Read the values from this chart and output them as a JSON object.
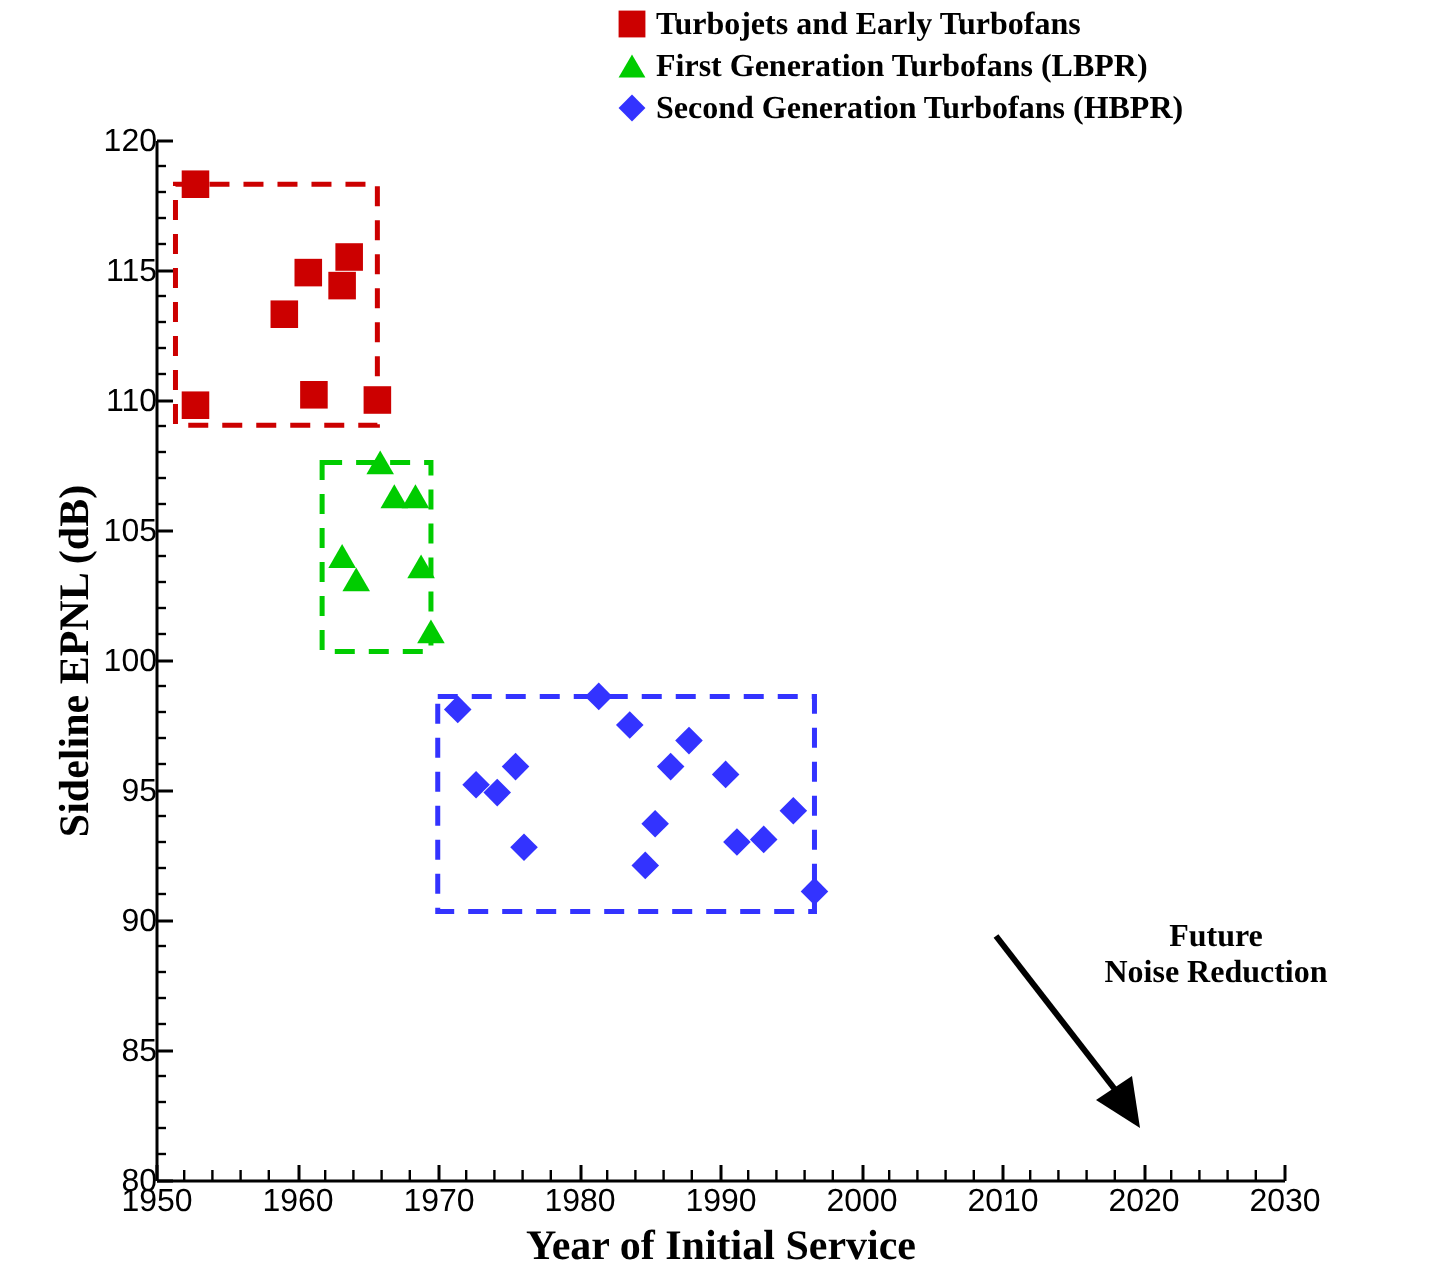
{
  "chart_data": {
    "type": "scatter",
    "xlabel": "Year of Initial Service",
    "ylabel": "Sideline EPNL (dB)",
    "annotations": [
      "Future\nNoise Reduction"
    ],
    "xlim": [
      1950,
      2030
    ],
    "xticks": [
      1950,
      {
        "value": 1952,
        "label": null
      },
      {
        "value": 1954,
        "label": null
      },
      {
        "value": 1956,
        "label": null
      },
      {
        "value": 1958,
        "label": null
      },
      1960,
      {
        "value": 1962,
        "label": null
      },
      {
        "value": 1964,
        "label": null
      },
      {
        "value": 1966,
        "label": null
      },
      {
        "value": 1968,
        "label": null
      },
      1970,
      {
        "value": 1972,
        "label": null
      },
      {
        "value": 1974,
        "label": null
      },
      {
        "value": 1976,
        "label": null
      },
      {
        "value": 1978,
        "label": null
      },
      1980,
      {
        "value": 1982,
        "label": null
      },
      {
        "value": 1984,
        "label": null
      },
      {
        "value": 1986,
        "label": null
      },
      {
        "value": 1988,
        "label": null
      },
      1990,
      {
        "value": 1992,
        "label": null
      },
      {
        "value": 1994,
        "label": null
      },
      {
        "value": 1996,
        "label": null
      },
      {
        "value": 1998,
        "label": null
      },
      2000,
      {
        "value": 2002,
        "label": null
      },
      {
        "value": 2004,
        "label": null
      },
      {
        "value": 2006,
        "label": null
      },
      {
        "value": 2008,
        "label": null
      },
      2010,
      {
        "value": 2012,
        "label": null
      },
      {
        "value": 2014,
        "label": null
      },
      {
        "value": 2016,
        "label": null
      },
      {
        "value": 2018,
        "label": null
      },
      2020,
      {
        "value": 2022,
        "label": null
      },
      {
        "value": 2024,
        "label": null
      },
      {
        "value": 2026,
        "label": null
      },
      {
        "value": 2028,
        "label": null
      },
      2030
    ],
    "ylim": [
      80,
      120
    ],
    "yticks": [
      80,
      {
        "value": 81,
        "label": null
      },
      {
        "value": 82,
        "label": null
      },
      {
        "value": 83,
        "label": null
      },
      {
        "value": 84,
        "label": null
      },
      85,
      {
        "value": 86,
        "label": null
      },
      {
        "value": 87,
        "label": null
      },
      {
        "value": 88,
        "label": null
      },
      {
        "value": 89,
        "label": null
      },
      90,
      {
        "value": 91,
        "label": null
      },
      {
        "value": 92,
        "label": null
      },
      {
        "value": 93,
        "label": null
      },
      {
        "value": 94,
        "label": null
      },
      95,
      {
        "value": 96,
        "label": null
      },
      {
        "value": 97,
        "label": null
      },
      {
        "value": 98,
        "label": null
      },
      {
        "value": 99,
        "label": null
      },
      100,
      {
        "value": 101,
        "label": null
      },
      {
        "value": 102,
        "label": null
      },
      {
        "value": 103,
        "label": null
      },
      {
        "value": 104,
        "label": null
      },
      105,
      {
        "value": 106,
        "label": null
      },
      {
        "value": 107,
        "label": null
      },
      {
        "value": 108,
        "label": null
      },
      {
        "value": 109,
        "label": null
      },
      110,
      {
        "value": 111,
        "label": null
      },
      {
        "value": 112,
        "label": null
      },
      {
        "value": 113,
        "label": null
      },
      {
        "value": 114,
        "label": null
      },
      115,
      {
        "value": 116,
        "label": null
      },
      {
        "value": 117,
        "label": null
      },
      {
        "value": 118,
        "label": null
      },
      {
        "value": 119,
        "label": null
      },
      120
    ],
    "grid": false,
    "legend": "top right",
    "series": [
      {
        "name": "Turbojets and Early Turbofans",
        "color": "#cc0000",
        "marker": "square",
        "x": [
          1952.8,
          1960.8,
          1963.7,
          1963.2,
          1959.1,
          1961.2,
          1965.7,
          1952.8
        ],
        "values": [
          118.3,
          114.9,
          115.5,
          114.4,
          113.3,
          110.2,
          110.0,
          109.8
        ]
      },
      {
        "name": "First Generation Turbofans (LBPR)",
        "color": "#00cc00",
        "marker": "triangle",
        "x": [
          1965.9,
          1966.9,
          1968.4,
          1963.2,
          1964.2,
          1968.8,
          1969.5
        ],
        "values": [
          107.6,
          106.3,
          106.3,
          104.0,
          103.1,
          103.6,
          101.1
        ]
      },
      {
        "name": "Second Generation Turbofans (HBPR)",
        "color": "#3333ff",
        "marker": "diamond",
        "x": [
          1971.4,
          1981.4,
          1983.6,
          1987.8,
          1986.5,
          1990.4,
          1975.5,
          1972.7,
          1974.2,
          1976.1,
          1985.4,
          1984.7,
          1991.2,
          1993.1,
          1995.2,
          1996.7
        ],
        "values": [
          98.1,
          98.6,
          97.5,
          96.9,
          95.9,
          95.6,
          95.9,
          95.2,
          94.9,
          92.8,
          93.7,
          92.1,
          93.0,
          93.1,
          94.2,
          91.1
        ]
      }
    ]
  }
}
